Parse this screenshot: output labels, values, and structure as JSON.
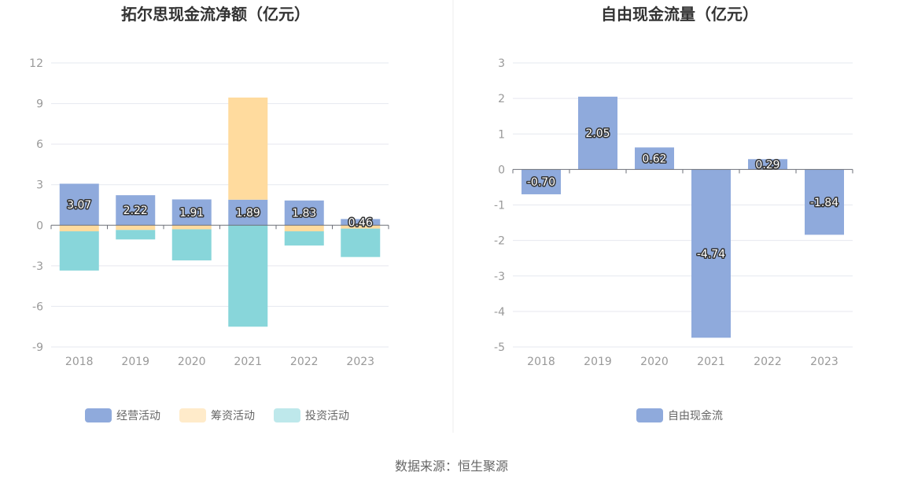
{
  "source_text": "数据来源：恒生聚源",
  "chart_data": [
    {
      "type": "bar",
      "stacked": true,
      "title": "拓尔思现金流净额（亿元）",
      "categories": [
        "2018",
        "2019",
        "2020",
        "2021",
        "2022",
        "2023"
      ],
      "ylim": [
        -9,
        12
      ],
      "yticks": [
        -9,
        -6,
        -3,
        0,
        3,
        6,
        9,
        12
      ],
      "grid": true,
      "legend_position": "bottom",
      "series": [
        {
          "name": "经营活动",
          "color": "#8faadc",
          "values": [
            3.07,
            2.22,
            1.91,
            1.89,
            1.83,
            0.46
          ],
          "labels": [
            "3.07",
            "2.22",
            "1.91",
            "1.89",
            "1.83",
            "0.46"
          ]
        },
        {
          "name": "筹资活动",
          "color": "#ffdb9e",
          "values": [
            -0.45,
            -0.35,
            -0.3,
            7.55,
            -0.45,
            -0.25
          ]
        },
        {
          "name": "投资活动",
          "color": "#88d6da",
          "values": [
            -2.9,
            -0.7,
            -2.3,
            -7.5,
            -1.05,
            -2.1
          ]
        }
      ]
    },
    {
      "type": "bar",
      "title": "自由现金流量（亿元）",
      "categories": [
        "2018",
        "2019",
        "2020",
        "2021",
        "2022",
        "2023"
      ],
      "ylim": [
        -5,
        3
      ],
      "yticks": [
        -5,
        -4,
        -3,
        -2,
        -1,
        0,
        1,
        2,
        3
      ],
      "grid": true,
      "legend_position": "bottom",
      "series": [
        {
          "name": "自由现金流",
          "color": "#8faadc",
          "values": [
            -0.7,
            2.05,
            0.62,
            -4.74,
            0.29,
            -1.84
          ],
          "labels": [
            "-0.70",
            "2.05",
            "0.62",
            "-4.74",
            "0.29",
            "-1.84"
          ]
        }
      ]
    }
  ]
}
